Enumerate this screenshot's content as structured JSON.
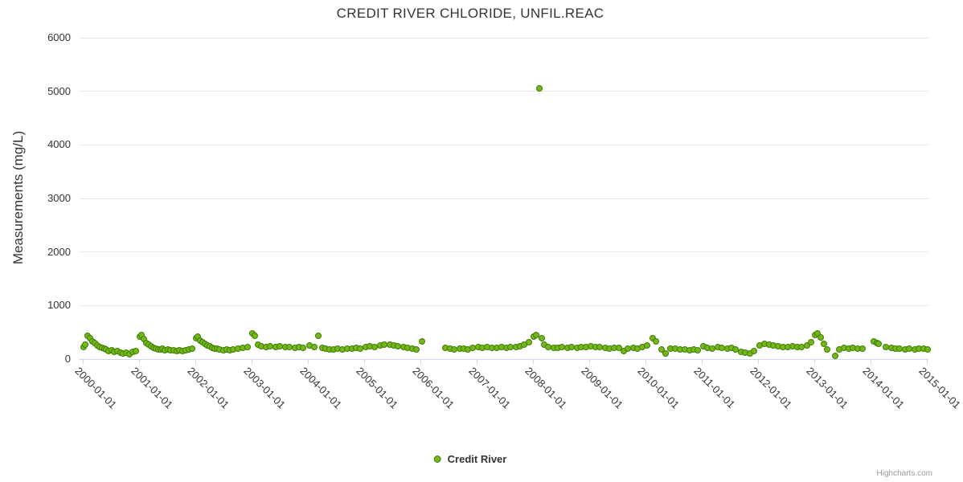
{
  "credits": {
    "label": "Highcharts.com"
  },
  "colors": {
    "point_fill": "#73b818",
    "point_stroke": "#3f7d05",
    "grid_line": "#e6e6e6",
    "axis_line": "#ccd6eb",
    "text": "#333333",
    "credits_text": "#999999",
    "background": "#ffffff"
  },
  "chart_data": {
    "type": "scatter",
    "title": "CREDIT RIVER CHLORIDE, UNFIL.REAC",
    "xlabel": "",
    "ylabel": "Measurements (mg/L)",
    "ylim": [
      0,
      6000
    ],
    "yticks": [
      0,
      1000,
      2000,
      3000,
      4000,
      5000,
      6000
    ],
    "xticks": [
      "2000-01-01",
      "2001-01-01",
      "2002-01-01",
      "2003-01-01",
      "2004-01-01",
      "2005-01-01",
      "2006-01-01",
      "2007-01-01",
      "2008-01-01",
      "2009-01-01",
      "2010-01-01",
      "2011-01-01",
      "2012-01-01",
      "2013-01-01",
      "2014-01-01",
      "2015-01-01"
    ],
    "grid": "horizontal-only",
    "legend_position": "bottom-center",
    "marker_radius": 4,
    "series": [
      {
        "name": "Credit River",
        "color": "#73b818",
        "points": [
          [
            "2000-01-05",
            230
          ],
          [
            "2000-01-18",
            265
          ],
          [
            "2000-02-03",
            440
          ],
          [
            "2000-02-18",
            385
          ],
          [
            "2000-03-04",
            330
          ],
          [
            "2000-03-19",
            295
          ],
          [
            "2000-04-03",
            260
          ],
          [
            "2000-04-18",
            230
          ],
          [
            "2000-05-03",
            210
          ],
          [
            "2000-05-18",
            195
          ],
          [
            "2000-06-02",
            175
          ],
          [
            "2000-06-17",
            155
          ],
          [
            "2000-07-07",
            165
          ],
          [
            "2000-07-22",
            140
          ],
          [
            "2000-08-11",
            150
          ],
          [
            "2000-09-01",
            125
          ],
          [
            "2000-09-20",
            105
          ],
          [
            "2000-10-10",
            115
          ],
          [
            "2000-11-01",
            95
          ],
          [
            "2000-11-21",
            130
          ],
          [
            "2000-12-11",
            150
          ],
          [
            "2001-01-05",
            420
          ],
          [
            "2001-01-19",
            445
          ],
          [
            "2001-02-03",
            380
          ],
          [
            "2001-02-17",
            305
          ],
          [
            "2001-03-04",
            265
          ],
          [
            "2001-03-19",
            235
          ],
          [
            "2001-04-03",
            215
          ],
          [
            "2001-04-18",
            195
          ],
          [
            "2001-05-03",
            185
          ],
          [
            "2001-05-18",
            175
          ],
          [
            "2001-06-02",
            190
          ],
          [
            "2001-06-17",
            165
          ],
          [
            "2001-07-07",
            180
          ],
          [
            "2001-07-22",
            160
          ],
          [
            "2001-08-11",
            170
          ],
          [
            "2001-09-01",
            150
          ],
          [
            "2001-09-20",
            165
          ],
          [
            "2001-10-10",
            155
          ],
          [
            "2001-11-01",
            170
          ],
          [
            "2001-11-21",
            185
          ],
          [
            "2001-12-11",
            200
          ],
          [
            "2002-01-05",
            395
          ],
          [
            "2002-01-19",
            425
          ],
          [
            "2002-02-03",
            345
          ],
          [
            "2002-02-17",
            310
          ],
          [
            "2002-03-04",
            280
          ],
          [
            "2002-03-19",
            255
          ],
          [
            "2002-04-03",
            235
          ],
          [
            "2002-04-18",
            215
          ],
          [
            "2002-05-03",
            200
          ],
          [
            "2002-05-18",
            190
          ],
          [
            "2002-06-07",
            180
          ],
          [
            "2002-07-02",
            170
          ],
          [
            "2002-07-22",
            185
          ],
          [
            "2002-08-11",
            165
          ],
          [
            "2002-09-05",
            175
          ],
          [
            "2002-10-01",
            190
          ],
          [
            "2002-11-05",
            205
          ],
          [
            "2002-12-03",
            220
          ],
          [
            "2003-01-07",
            480
          ],
          [
            "2003-01-21",
            430
          ],
          [
            "2003-02-11",
            265
          ],
          [
            "2003-03-04",
            245
          ],
          [
            "2003-04-01",
            230
          ],
          [
            "2003-05-01",
            240
          ],
          [
            "2003-06-03",
            225
          ],
          [
            "2003-07-01",
            235
          ],
          [
            "2003-08-05",
            220
          ],
          [
            "2003-09-02",
            230
          ],
          [
            "2003-10-07",
            215
          ],
          [
            "2003-11-04",
            225
          ],
          [
            "2003-12-02",
            210
          ],
          [
            "2004-01-13",
            250
          ],
          [
            "2004-02-10",
            230
          ],
          [
            "2004-03-09",
            435
          ],
          [
            "2004-04-06",
            215
          ],
          [
            "2004-04-27",
            190
          ],
          [
            "2004-05-18",
            175
          ],
          [
            "2004-06-15",
            185
          ],
          [
            "2004-07-13",
            195
          ],
          [
            "2004-08-10",
            180
          ],
          [
            "2004-09-14",
            200
          ],
          [
            "2004-10-12",
            190
          ],
          [
            "2004-11-09",
            210
          ],
          [
            "2004-12-07",
            195
          ],
          [
            "2005-01-11",
            220
          ],
          [
            "2005-02-08",
            240
          ],
          [
            "2005-03-08",
            230
          ],
          [
            "2005-04-12",
            250
          ],
          [
            "2005-05-10",
            265
          ],
          [
            "2005-06-14",
            275
          ],
          [
            "2005-07-12",
            255
          ],
          [
            "2005-08-09",
            240
          ],
          [
            "2005-09-13",
            230
          ],
          [
            "2005-10-11",
            215
          ],
          [
            "2005-11-08",
            200
          ],
          [
            "2005-12-06",
            185
          ],
          [
            "2006-01-10",
            330
          ],
          [
            "2006-06-13",
            205
          ],
          [
            "2006-07-11",
            195
          ],
          [
            "2006-08-08",
            185
          ],
          [
            "2006-09-12",
            200
          ],
          [
            "2006-10-10",
            190
          ],
          [
            "2006-11-07",
            180
          ],
          [
            "2006-12-05",
            210
          ],
          [
            "2007-01-09",
            230
          ],
          [
            "2007-02-06",
            215
          ],
          [
            "2007-03-06",
            225
          ],
          [
            "2007-04-10",
            205
          ],
          [
            "2007-05-08",
            215
          ],
          [
            "2007-06-12",
            225
          ],
          [
            "2007-07-10",
            210
          ],
          [
            "2007-08-07",
            230
          ],
          [
            "2007-09-11",
            220
          ],
          [
            "2007-10-09",
            240
          ],
          [
            "2007-11-06",
            265
          ],
          [
            "2007-12-04",
            310
          ],
          [
            "2008-01-08",
            420
          ],
          [
            "2008-01-22",
            455
          ],
          [
            "2008-02-12",
            5055
          ],
          [
            "2008-02-26",
            385
          ],
          [
            "2008-03-11",
            265
          ],
          [
            "2008-04-08",
            230
          ],
          [
            "2008-05-13",
            215
          ],
          [
            "2008-06-10",
            205
          ],
          [
            "2008-07-08",
            220
          ],
          [
            "2008-08-12",
            210
          ],
          [
            "2008-09-09",
            225
          ],
          [
            "2008-10-14",
            215
          ],
          [
            "2008-11-11",
            230
          ],
          [
            "2008-12-09",
            220
          ],
          [
            "2009-01-13",
            235
          ],
          [
            "2009-02-10",
            220
          ],
          [
            "2009-03-10",
            230
          ],
          [
            "2009-04-14",
            210
          ],
          [
            "2009-05-12",
            200
          ],
          [
            "2009-06-09",
            215
          ],
          [
            "2009-07-14",
            205
          ],
          [
            "2009-08-11",
            150
          ],
          [
            "2009-09-08",
            200
          ],
          [
            "2009-10-13",
            210
          ],
          [
            "2009-11-10",
            195
          ],
          [
            "2009-12-08",
            220
          ],
          [
            "2010-01-12",
            260
          ],
          [
            "2010-02-16",
            390
          ],
          [
            "2010-03-09",
            330
          ],
          [
            "2010-04-13",
            185
          ],
          [
            "2010-05-11",
            105
          ],
          [
            "2010-06-08",
            200
          ],
          [
            "2010-07-13",
            190
          ],
          [
            "2010-08-10",
            175
          ],
          [
            "2010-09-14",
            185
          ],
          [
            "2010-10-12",
            160
          ],
          [
            "2010-11-09",
            175
          ],
          [
            "2010-12-07",
            165
          ],
          [
            "2011-01-11",
            235
          ],
          [
            "2011-02-08",
            215
          ],
          [
            "2011-03-08",
            200
          ],
          [
            "2011-04-12",
            225
          ],
          [
            "2011-05-10",
            210
          ],
          [
            "2011-06-14",
            195
          ],
          [
            "2011-07-12",
            205
          ],
          [
            "2011-08-09",
            185
          ],
          [
            "2011-09-13",
            140
          ],
          [
            "2011-10-11",
            120
          ],
          [
            "2011-11-08",
            105
          ],
          [
            "2011-12-06",
            150
          ],
          [
            "2012-01-10",
            255
          ],
          [
            "2012-02-14",
            285
          ],
          [
            "2012-03-13",
            270
          ],
          [
            "2012-04-10",
            255
          ],
          [
            "2012-05-08",
            240
          ],
          [
            "2012-06-12",
            230
          ],
          [
            "2012-07-10",
            225
          ],
          [
            "2012-08-14",
            240
          ],
          [
            "2012-09-11",
            230
          ],
          [
            "2012-10-09",
            225
          ],
          [
            "2012-11-13",
            255
          ],
          [
            "2012-12-11",
            310
          ],
          [
            "2013-01-08",
            450
          ],
          [
            "2013-01-22",
            480
          ],
          [
            "2013-02-12",
            405
          ],
          [
            "2013-03-05",
            285
          ],
          [
            "2013-03-26",
            180
          ],
          [
            "2013-05-14",
            60
          ],
          [
            "2013-06-11",
            185
          ],
          [
            "2013-07-09",
            210
          ],
          [
            "2013-08-13",
            195
          ],
          [
            "2013-09-10",
            205
          ],
          [
            "2013-10-08",
            190
          ],
          [
            "2013-11-12",
            200
          ],
          [
            "2014-01-21",
            330
          ],
          [
            "2014-02-11",
            300
          ],
          [
            "2014-02-25",
            285
          ],
          [
            "2014-04-08",
            225
          ],
          [
            "2014-05-13",
            205
          ],
          [
            "2014-06-10",
            190
          ],
          [
            "2014-07-08",
            200
          ],
          [
            "2014-08-12",
            185
          ],
          [
            "2014-09-09",
            195
          ],
          [
            "2014-10-14",
            180
          ],
          [
            "2014-11-11",
            190
          ],
          [
            "2014-12-09",
            200
          ],
          [
            "2015-01-06",
            185
          ]
        ]
      }
    ]
  }
}
